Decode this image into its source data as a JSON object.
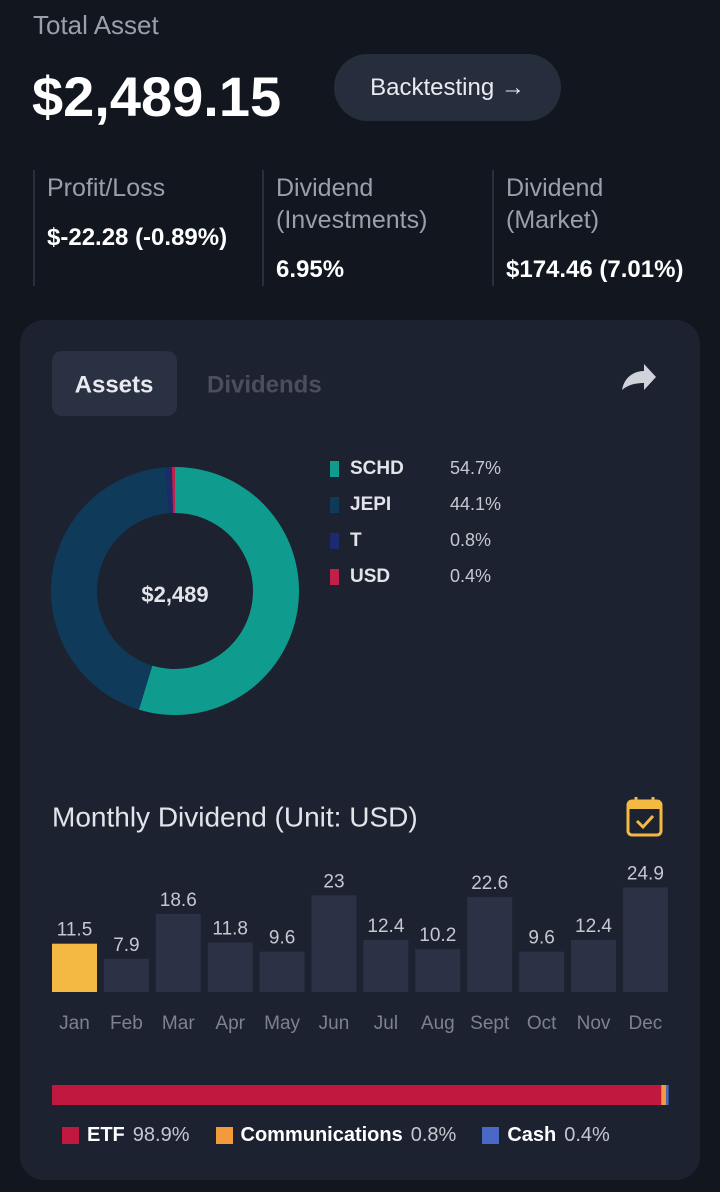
{
  "header": {
    "title": "Total Asset",
    "amount": "$2,489.15",
    "button": "Backtesting →"
  },
  "stats": [
    {
      "label": "Profit/Loss",
      "value": "$-22.28 (-0.89%)"
    },
    {
      "label": "Dividend (Investments)",
      "value": "6.95%"
    },
    {
      "label": "Dividend (Market)",
      "value": "$174.46 (7.01%)"
    }
  ],
  "tabs": {
    "active": "Assets",
    "inactive": "Dividends"
  },
  "chart_data": [
    {
      "type": "pie",
      "donut": true,
      "center_label": "$2,489",
      "categories": [
        "SCHD",
        "JEPI",
        "T",
        "USD"
      ],
      "values": [
        54.7,
        44.1,
        0.8,
        0.4
      ],
      "value_labels": [
        "54.7%",
        "44.1%",
        "0.8%",
        "0.4%"
      ],
      "colors": [
        "#0f9c8f",
        "#0f3a5a",
        "#1c2a6e",
        "#c21f4b"
      ]
    },
    {
      "type": "bar",
      "title": "Monthly Dividend (Unit: USD)",
      "categories": [
        "Jan",
        "Feb",
        "Mar",
        "Apr",
        "May",
        "Jun",
        "Jul",
        "Aug",
        "Sept",
        "Oct",
        "Nov",
        "Dec"
      ],
      "values": [
        11.5,
        7.9,
        18.6,
        11.8,
        9.6,
        23,
        12.4,
        10.2,
        22.6,
        9.6,
        12.4,
        24.9
      ],
      "colors": [
        "#f4b942",
        "#2b3246",
        "#2b3246",
        "#2b3246",
        "#2b3246",
        "#2b3246",
        "#2b3246",
        "#2b3246",
        "#2b3246",
        "#2b3246",
        "#2b3246",
        "#2b3246"
      ]
    },
    {
      "type": "stacked_bar",
      "categories": [
        "ETF",
        "Communications",
        "Cash"
      ],
      "values": [
        98.9,
        0.8,
        0.4
      ],
      "value_labels": [
        "98.9%",
        "0.8%",
        "0.4%"
      ],
      "colors": [
        "#c0183f",
        "#f39a3c",
        "#4a68c6"
      ]
    }
  ]
}
